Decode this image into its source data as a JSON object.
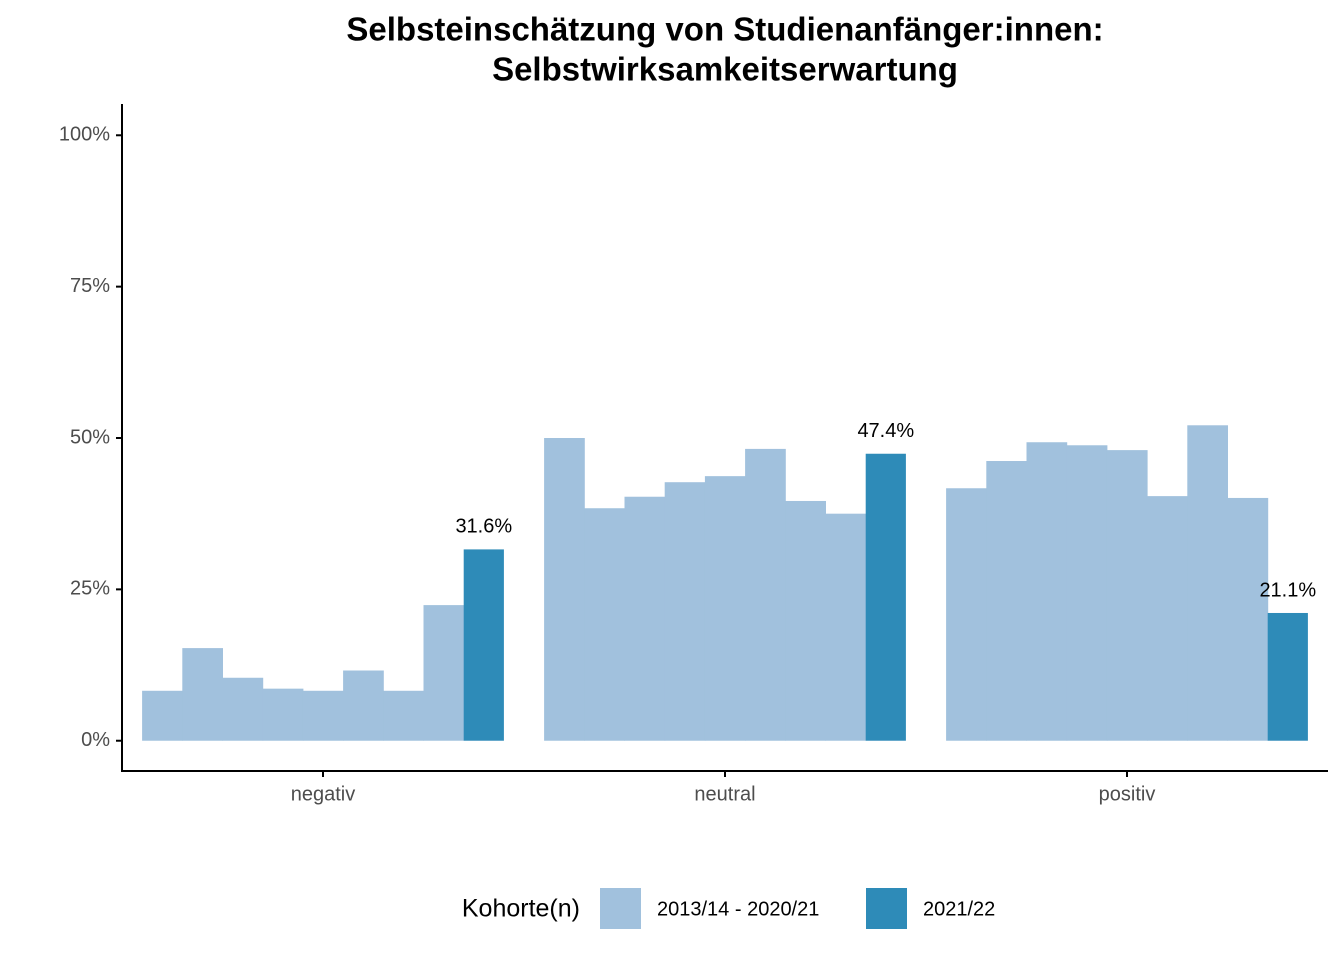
{
  "chart_data": {
    "type": "bar",
    "title": [
      "Selbsteinschätzung von Studienanfänger:innen:",
      "Selbstwirksamkeitserwartung"
    ],
    "categories": [
      "negativ",
      "neutral",
      "positiv"
    ],
    "series": [
      {
        "name": "2013/14 - 2020/21",
        "color": "#a1c1dd",
        "values": [
          [
            8.25,
            15.3,
            10.4,
            8.6,
            8.25,
            11.6,
            8.25,
            22.4
          ],
          [
            50.0,
            38.4,
            40.3,
            42.7,
            43.7,
            48.2,
            39.6,
            37.5
          ],
          [
            41.7,
            46.2,
            49.3,
            48.8,
            48.0,
            40.4,
            52.1,
            40.1
          ]
        ]
      },
      {
        "name": "2021/22",
        "color": "#2e8bb8",
        "values": [
          31.6,
          47.4,
          21.1
        ],
        "value_labels": [
          "31.6%",
          "47.4%",
          "21.1%"
        ]
      }
    ],
    "legend_title": "Kohorte(n)",
    "ylim": [
      -5,
      105
    ],
    "yticks": [
      {
        "value": 0,
        "label": "0%"
      },
      {
        "value": 25,
        "label": "25%"
      },
      {
        "value": 50,
        "label": "50%"
      },
      {
        "value": 75,
        "label": "75%"
      },
      {
        "value": 100,
        "label": "100%"
      }
    ],
    "grid": false
  }
}
